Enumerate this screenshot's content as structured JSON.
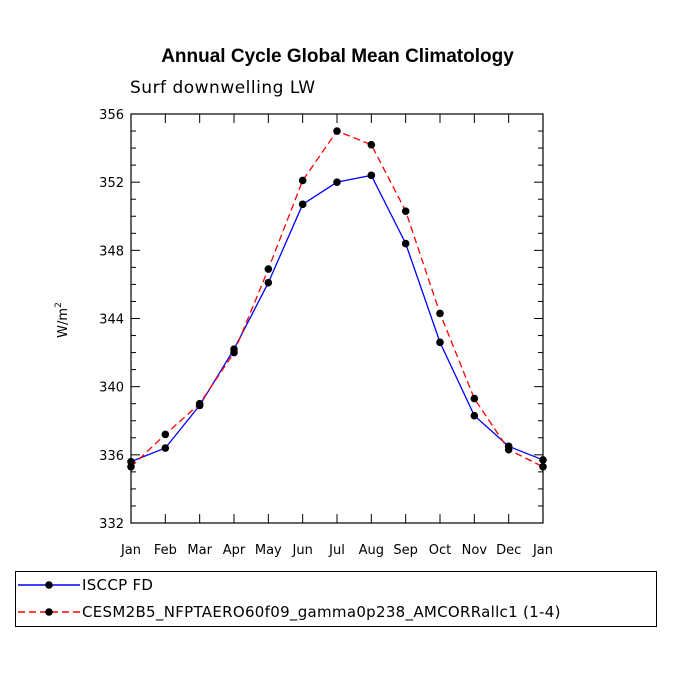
{
  "chart_data": {
    "type": "line",
    "title": "Annual Cycle Global Mean Climatology",
    "subtitle": "Surf downwelling LW",
    "xlabel": "",
    "ylabel": "W/m",
    "ylabel_superscript": "2",
    "ylim": [
      332,
      356
    ],
    "yticks": [
      332,
      336,
      340,
      344,
      348,
      352,
      356
    ],
    "ytick_labels": [
      "332",
      "336",
      "340",
      "344",
      "348",
      "352",
      "356"
    ],
    "categories": [
      "Jan",
      "Feb",
      "Mar",
      "Apr",
      "May",
      "Jun",
      "Jul",
      "Aug",
      "Sep",
      "Oct",
      "Nov",
      "Dec",
      "Jan"
    ],
    "series": [
      {
        "name": "ISCCP FD",
        "color": "#0000ff",
        "dash": "solid",
        "values": [
          335.6,
          336.4,
          338.9,
          342.2,
          346.1,
          350.7,
          352.0,
          352.4,
          348.4,
          342.6,
          338.3,
          336.5,
          335.7
        ]
      },
      {
        "name": "CESM2B5_NFPTAERO60f09_gamma0p238_AMCORRallc1 (1-4)",
        "color": "#ff0000",
        "dash": "dashed",
        "values": [
          335.3,
          337.2,
          339.0,
          342.0,
          346.9,
          352.1,
          355.0,
          354.2,
          350.3,
          344.3,
          339.3,
          336.3,
          335.3
        ]
      }
    ],
    "legend_position": "bottom"
  }
}
